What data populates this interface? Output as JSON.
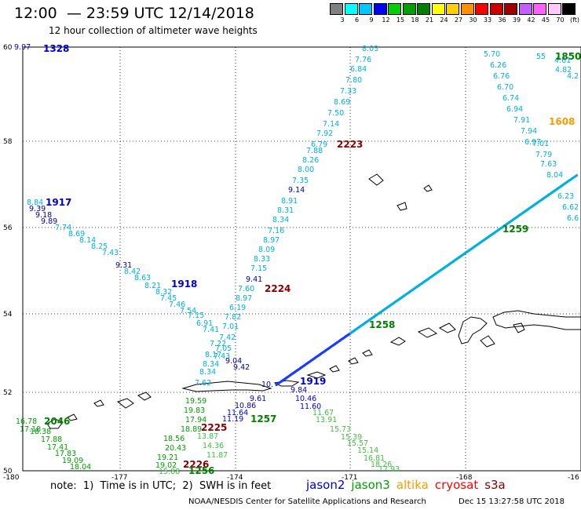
{
  "header": {
    "title": "12:00  — 23:59 UTC 12/14/2018",
    "subtitle": "12 hour collection of altimeter wave heights"
  },
  "legend": {
    "colors": [
      "#808080",
      "#00ffff",
      "#00c8ff",
      "#0000ff",
      "#00d000",
      "#00a000",
      "#008000",
      "#ffff00",
      "#ffd000",
      "#ff9000",
      "#ff0000",
      "#d00000",
      "#a00000",
      "#c060ff",
      "#ff60ff",
      "#ffc8ff",
      "#000000"
    ],
    "labels": [
      "3",
      "6",
      "9",
      "12",
      "15",
      "18",
      "21",
      "24",
      "27",
      "30",
      "33",
      "36",
      "39",
      "42",
      "45",
      "70",
      "(ft)"
    ]
  },
  "axes": {
    "y_labels": [
      "60",
      "58",
      "56",
      "54",
      "52",
      "50"
    ],
    "x_labels": [
      "-180",
      "-177",
      "-174",
      "-171",
      "-168",
      "-16"
    ]
  },
  "colors": {
    "jason2": "#0000cc",
    "jason3": "#008000",
    "altika": "#ff9900",
    "cryosat": "#cc0000",
    "s3a": "#880000",
    "swh_low": "#00b0e0",
    "swh_mid": "#00b000",
    "swh_green2": "#40c040",
    "swh_dark_blue": "#000099"
  },
  "passes": [
    {
      "id": "1328",
      "color": "#0000cc"
    },
    {
      "id": "1850",
      "color": "#008000"
    },
    {
      "id": "1608",
      "color": "#ff9900"
    },
    {
      "id": "2223",
      "color": "#880000"
    },
    {
      "id": "1917",
      "color": "#0000cc"
    },
    {
      "id": "1918",
      "color": "#0000cc"
    },
    {
      "id": "2224",
      "color": "#880000"
    },
    {
      "id": "1259",
      "color": "#008000"
    },
    {
      "id": "1258",
      "color": "#008000"
    },
    {
      "id": "1919",
      "color": "#0000cc"
    },
    {
      "id": "1257",
      "color": "#008000"
    },
    {
      "id": "2225",
      "color": "#880000"
    },
    {
      "id": "2046",
      "color": "#008000"
    },
    {
      "id": "2226",
      "color": "#880000"
    },
    {
      "id": "1256",
      "color": "#008000"
    }
  ],
  "swh_values": [
    {
      "v": "9.97",
      "c": "#0000cc"
    },
    {
      "v": "8.03",
      "c": "#00b0e0"
    },
    {
      "v": "7.76",
      "c": "#00b0e0"
    },
    {
      "v": "6.84",
      "c": "#00b0e0"
    },
    {
      "v": "7.80",
      "c": "#00b0e0"
    },
    {
      "v": "7.33",
      "c": "#00b0e0"
    },
    {
      "v": "8.69",
      "c": "#00b0e0"
    },
    {
      "v": "7.50",
      "c": "#00b0e0"
    },
    {
      "v": "7.14",
      "c": "#00b0e0"
    },
    {
      "v": "7.92",
      "c": "#00b0e0"
    },
    {
      "v": "6.79",
      "c": "#00b0e0"
    },
    {
      "v": "7.88",
      "c": "#00b0e0"
    },
    {
      "v": "8.26",
      "c": "#00b0e0"
    },
    {
      "v": "8.00",
      "c": "#00b0e0"
    },
    {
      "v": "7.35",
      "c": "#00b0e0"
    },
    {
      "v": "9.14",
      "c": "#000099"
    },
    {
      "v": "8.91",
      "c": "#00b0e0"
    },
    {
      "v": "8.31",
      "c": "#00b0e0"
    },
    {
      "v": "8.34",
      "c": "#00b0e0"
    },
    {
      "v": "7.16",
      "c": "#00b0e0"
    },
    {
      "v": "8.97",
      "c": "#00b0e0"
    },
    {
      "v": "8.09",
      "c": "#00b0e0"
    },
    {
      "v": "8.33",
      "c": "#00b0e0"
    },
    {
      "v": "7.15",
      "c": "#00b0e0"
    },
    {
      "v": "9.41",
      "c": "#000099"
    },
    {
      "v": "7.60",
      "c": "#00b0e0"
    },
    {
      "v": "8.97",
      "c": "#00b0e0"
    },
    {
      "v": "6.19",
      "c": "#00b0e0"
    },
    {
      "v": "7.82",
      "c": "#00b0e0"
    },
    {
      "v": "7.01",
      "c": "#00b0e0"
    },
    {
      "v": "7.42",
      "c": "#00b0e0"
    },
    {
      "v": "7.05",
      "c": "#00b0e0"
    },
    {
      "v": "7.43",
      "c": "#00b0e0"
    },
    {
      "v": "9.04",
      "c": "#000099"
    },
    {
      "v": "9.42",
      "c": "#000099"
    },
    {
      "v": "8.84",
      "c": "#00b0e0"
    },
    {
      "v": "9.39",
      "c": "#000099"
    },
    {
      "v": "9.18",
      "c": "#000099"
    },
    {
      "v": "9.89",
      "c": "#000099"
    },
    {
      "v": "7.74",
      "c": "#00b0e0"
    },
    {
      "v": "8.69",
      "c": "#00b0e0"
    },
    {
      "v": "8.14",
      "c": "#00b0e0"
    },
    {
      "v": "8.25",
      "c": "#00b0e0"
    },
    {
      "v": "7.43",
      "c": "#00b0e0"
    },
    {
      "v": "9.31",
      "c": "#000099"
    },
    {
      "v": "8.42",
      "c": "#00b0e0"
    },
    {
      "v": "8.63",
      "c": "#00b0e0"
    },
    {
      "v": "8.21",
      "c": "#00b0e0"
    },
    {
      "v": "8.32",
      "c": "#00b0e0"
    },
    {
      "v": "7.45",
      "c": "#00b0e0"
    },
    {
      "v": "7.46",
      "c": "#00b0e0"
    },
    {
      "v": "7.54",
      "c": "#00b0e0"
    },
    {
      "v": "7.15",
      "c": "#00b0e0"
    },
    {
      "v": "6.91",
      "c": "#00b0e0"
    },
    {
      "v": "7.41",
      "c": "#00b0e0"
    },
    {
      "v": "7.22",
      "c": "#00b0e0"
    },
    {
      "v": "8.17",
      "c": "#00b0e0"
    },
    {
      "v": "8.34",
      "c": "#00b0e0"
    },
    {
      "v": "8.34",
      "c": "#00b0e0"
    },
    {
      "v": "7.62",
      "c": "#00b0e0"
    },
    {
      "v": "5.70",
      "c": "#00b0e0"
    },
    {
      "v": "6.26",
      "c": "#00b0e0"
    },
    {
      "v": "6.76",
      "c": "#00b0e0"
    },
    {
      "v": "6.70",
      "c": "#00b0e0"
    },
    {
      "v": "6.74",
      "c": "#00b0e0"
    },
    {
      "v": "6.94",
      "c": "#00b0e0"
    },
    {
      "v": "7.91",
      "c": "#00b0e0"
    },
    {
      "v": "7.94",
      "c": "#00b0e0"
    },
    {
      "v": "6.97",
      "c": "#00b0e0"
    },
    {
      "v": "7.01",
      "c": "#00b0e0"
    },
    {
      "v": "7.79",
      "c": "#00b0e0"
    },
    {
      "v": "7.63",
      "c": "#00b0e0"
    },
    {
      "v": "8.04",
      "c": "#00b0e0"
    },
    {
      "v": "6.23",
      "c": "#00b0e0"
    },
    {
      "v": "6.62",
      "c": "#00b0e0"
    },
    {
      "v": "6.6",
      "c": "#00b0e0"
    },
    {
      "v": "4.61",
      "c": "#00b0e0"
    },
    {
      "v": "4.82",
      "c": "#00b0e0"
    },
    {
      "v": "4.2",
      "c": "#00b0e0"
    },
    {
      "v": "55",
      "c": "#00b0e0"
    },
    {
      "v": "19.59",
      "c": "#00a000"
    },
    {
      "v": "19.83",
      "c": "#00a000"
    },
    {
      "v": "17.94",
      "c": "#00a000"
    },
    {
      "v": "18.89",
      "c": "#00a000"
    },
    {
      "v": "18.56",
      "c": "#00a000"
    },
    {
      "v": "20.43",
      "c": "#00a000"
    },
    {
      "v": "19.21",
      "c": "#00a000"
    },
    {
      "v": "19.02",
      "c": "#00a000"
    },
    {
      "v": "15.88",
      "c": "#40c040"
    },
    {
      "v": "13.87",
      "c": "#40c040"
    },
    {
      "v": "14.36",
      "c": "#40c040"
    },
    {
      "v": "11.87",
      "c": "#40c040"
    },
    {
      "v": "10.86",
      "c": "#0000cc"
    },
    {
      "v": "11.64",
      "c": "#0000cc"
    },
    {
      "v": "11.19",
      "c": "#0000cc"
    },
    {
      "v": "9.61",
      "c": "#0000cc"
    },
    {
      "v": "10.46",
      "c": "#0000cc"
    },
    {
      "v": "11.60",
      "c": "#0000cc"
    },
    {
      "v": "9.84",
      "c": "#0000cc"
    },
    {
      "v": "10.",
      "c": "#0000cc"
    },
    {
      "v": "11.67",
      "c": "#40c040"
    },
    {
      "v": "13.91",
      "c": "#40c040"
    },
    {
      "v": "15.73",
      "c": "#40c040"
    },
    {
      "v": "15.39",
      "c": "#40c040"
    },
    {
      "v": "15.57",
      "c": "#40c040"
    },
    {
      "v": "15.14",
      "c": "#40c040"
    },
    {
      "v": "16.81",
      "c": "#40c040"
    },
    {
      "v": "18.26",
      "c": "#40c040"
    },
    {
      "v": "17.93",
      "c": "#40c040"
    },
    {
      "v": "16.78",
      "c": "#00a000"
    },
    {
      "v": "17.18",
      "c": "#00a000"
    },
    {
      "v": "18.38",
      "c": "#00a000"
    },
    {
      "v": "17.88",
      "c": "#00a000"
    },
    {
      "v": "17.41",
      "c": "#00a000"
    },
    {
      "v": "17.83",
      "c": "#00a000"
    },
    {
      "v": "19.09",
      "c": "#00a000"
    },
    {
      "v": "18.04",
      "c": "#00a000"
    }
  ],
  "footer": {
    "note": "note:  1)  Time is in UTC;  2)  SWH is in feet",
    "satellites": [
      {
        "name": "jason2",
        "color": "#0000cc"
      },
      {
        "name": "jason3",
        "color": "#00a000"
      },
      {
        "name": "altika",
        "color": "#ff9900"
      },
      {
        "name": "cryosat",
        "color": "#ff0000"
      },
      {
        "name": "s3a",
        "color": "#880000"
      }
    ],
    "credit": "NOAA/NESDIS Center for Satellite Applications and Research",
    "date": "Dec 15 13:27:58 UTC 2018"
  }
}
